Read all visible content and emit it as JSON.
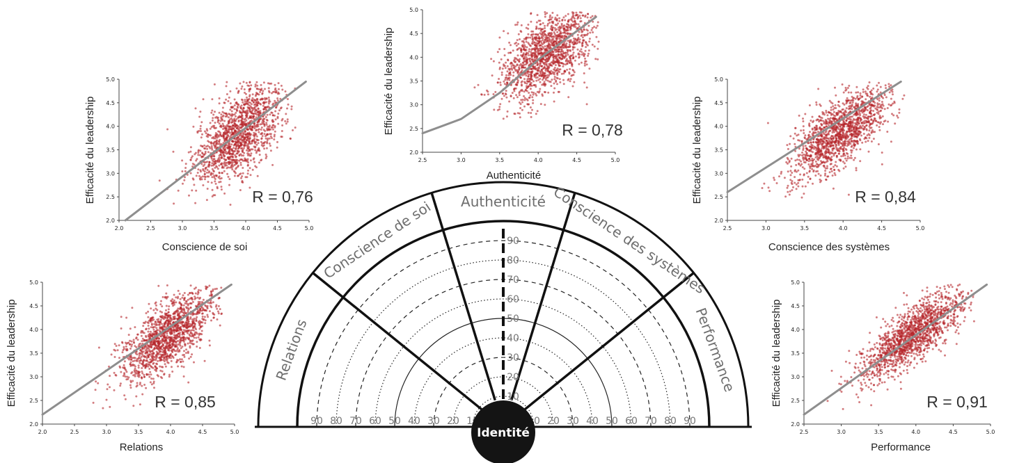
{
  "chart_data": [
    {
      "type": "scatter",
      "xlabel": "Conscience de soi",
      "ylabel": "Efficacité du leadership",
      "r_label": "R = 0,76",
      "xlim": [
        2.0,
        5.0
      ],
      "ylim": [
        2.0,
        5.0
      ],
      "xticks": [
        "2.0",
        "2.5",
        "3.0",
        "3.5",
        "4.0",
        "4.5",
        "5.0"
      ],
      "yticks": [
        "2.0",
        "2.5",
        "3.0",
        "3.5",
        "4.0",
        "4.5",
        "5.0"
      ],
      "cluster": {
        "x_mean": 3.9,
        "x_sd": 0.36,
        "y_min": 2.25,
        "y_max": 4.95,
        "r": 0.76
      },
      "trend_line": {
        "x": [
          2.1,
          4.95
        ],
        "y": [
          2.0,
          4.95
        ]
      }
    },
    {
      "type": "scatter",
      "xlabel": "Authenticité",
      "ylabel": "Efficacité du leadership",
      "r_label": "R = 0,78",
      "xlim": [
        2.5,
        5.0
      ],
      "ylim": [
        2.0,
        5.0
      ],
      "xticks": [
        "2.5",
        "3.0",
        "3.5",
        "4.0",
        "4.5",
        "5.0"
      ],
      "yticks": [
        "2.0",
        "2.5",
        "3.0",
        "3.5",
        "4.0",
        "4.5",
        "5.0"
      ],
      "cluster": {
        "x_mean": 4.1,
        "x_sd": 0.3,
        "y_min": 2.7,
        "y_max": 4.95,
        "r": 0.78
      },
      "trend_line": {
        "x": [
          2.5,
          3.0,
          3.5,
          4.0,
          4.5,
          4.75
        ],
        "y": [
          2.4,
          2.7,
          3.25,
          3.95,
          4.55,
          4.85
        ]
      }
    },
    {
      "type": "scatter",
      "xlabel": "Conscience des systèmes",
      "ylabel": "Efficacité du leadership",
      "r_label": "R = 0,84",
      "xlim": [
        2.5,
        5.0
      ],
      "ylim": [
        2.0,
        5.0
      ],
      "xticks": [
        "2.5",
        "3.0",
        "3.5",
        "4.0",
        "4.5",
        "5.0"
      ],
      "yticks": [
        "2.0",
        "2.5",
        "3.0",
        "3.5",
        "4.0",
        "4.5",
        "5.0"
      ],
      "cluster": {
        "x_mean": 3.95,
        "x_sd": 0.32,
        "y_min": 2.3,
        "y_max": 4.95,
        "r": 0.84
      },
      "trend_line": {
        "x": [
          2.5,
          4.75
        ],
        "y": [
          2.6,
          4.95
        ]
      }
    },
    {
      "type": "scatter",
      "xlabel": "Relations",
      "ylabel": "Efficacité du leadership",
      "r_label": "R = 0,85",
      "xlim": [
        2.0,
        5.0
      ],
      "ylim": [
        2.0,
        5.0
      ],
      "xticks": [
        "2.0",
        "2.5",
        "3.0",
        "3.5",
        "4.0",
        "4.5",
        "5.0"
      ],
      "yticks": [
        "2.0",
        "2.5",
        "3.0",
        "3.5",
        "4.0",
        "4.5",
        "5.0"
      ],
      "cluster": {
        "x_mean": 3.95,
        "x_sd": 0.38,
        "y_min": 2.25,
        "y_max": 4.95,
        "r": 0.85
      },
      "trend_line": {
        "x": [
          2.0,
          4.95
        ],
        "y": [
          2.2,
          4.95
        ]
      }
    },
    {
      "type": "scatter",
      "xlabel": "Performance",
      "ylabel": "Efficacité du leadership",
      "r_label": "R = 0,91",
      "xlim": [
        2.5,
        5.0
      ],
      "ylim": [
        2.0,
        5.0
      ],
      "xticks": [
        "2.5",
        "3.0",
        "3.5",
        "4.0",
        "4.5",
        "5.0"
      ],
      "yticks": [
        "2.0",
        "2.5",
        "3.0",
        "3.5",
        "4.0",
        "4.5",
        "5.0"
      ],
      "cluster": {
        "x_mean": 3.95,
        "x_sd": 0.34,
        "y_min": 2.3,
        "y_max": 4.95,
        "r": 0.91
      },
      "trend_line": {
        "x": [
          2.5,
          4.95
        ],
        "y": [
          2.2,
          4.95
        ]
      }
    }
  ],
  "radar": {
    "center_label": "Identité",
    "segments": [
      {
        "label": "Relations"
      },
      {
        "label": "Conscience de soi"
      },
      {
        "label": "Authenticité"
      },
      {
        "label": "Conscience des systèmes"
      },
      {
        "label": "Performance"
      }
    ],
    "rings": [
      "10",
      "20",
      "30",
      "40",
      "50",
      "60",
      "70",
      "80",
      "90"
    ]
  },
  "colors": {
    "dots": "#b5262b",
    "trend": "#8e8e8e",
    "ink": "#111111",
    "segment_text": "#6e6e6e"
  }
}
